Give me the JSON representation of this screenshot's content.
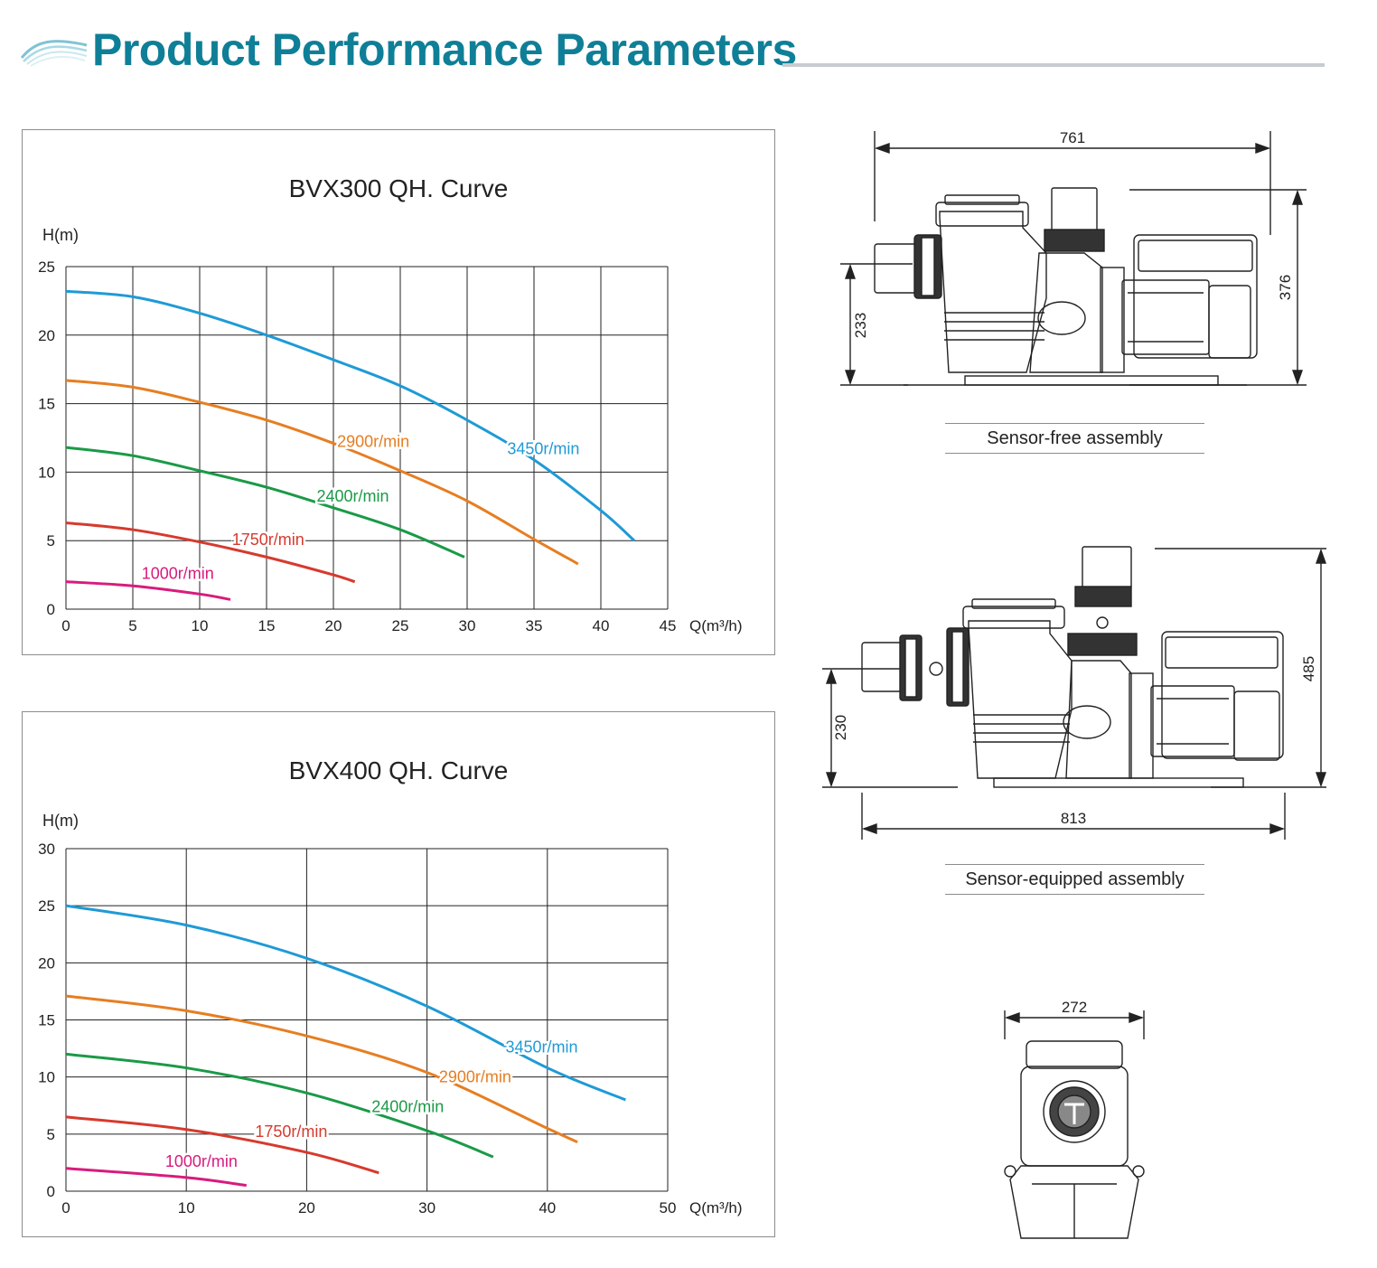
{
  "header": {
    "title": "Product Performance Parameters",
    "accent_color": "#0f7f97",
    "logo_icon": "wave-icon"
  },
  "chart_data": [
    {
      "type": "line",
      "title": "BVX300 QH. Curve",
      "ylabel": "H(m)",
      "xlabel": "Q(m³/h)",
      "xlim": [
        0,
        45
      ],
      "ylim": [
        0,
        25
      ],
      "xticks": [
        0,
        5,
        10,
        15,
        20,
        25,
        30,
        35,
        40,
        45
      ],
      "yticks": [
        0,
        5,
        10,
        15,
        20,
        25
      ],
      "grid": true,
      "series": [
        {
          "name": "3450r/min",
          "color": "#1f9ad6",
          "x": [
            0,
            5,
            10,
            15,
            20,
            25,
            30,
            35,
            40,
            42.5
          ],
          "y": [
            23.2,
            22.8,
            21.6,
            20.0,
            18.2,
            16.3,
            13.8,
            10.9,
            7.2,
            5.0
          ]
        },
        {
          "name": "2900r/min",
          "color": "#e67e22",
          "x": [
            0,
            5,
            10,
            15,
            20,
            25,
            30,
            35,
            38.3
          ],
          "y": [
            16.7,
            16.2,
            15.1,
            13.8,
            12.1,
            10.1,
            7.9,
            5.1,
            3.3
          ]
        },
        {
          "name": "2400r/min",
          "color": "#1a9a47",
          "x": [
            0,
            5,
            10,
            15,
            20,
            25,
            29.8
          ],
          "y": [
            11.8,
            11.2,
            10.1,
            8.9,
            7.4,
            5.8,
            3.8
          ]
        },
        {
          "name": "1750r/min",
          "color": "#d63a2e",
          "x": [
            0,
            5,
            10,
            15,
            20,
            21.6
          ],
          "y": [
            6.3,
            5.8,
            4.9,
            3.8,
            2.5,
            2.0
          ]
        },
        {
          "name": "1000r/min",
          "color": "#d81b7d",
          "x": [
            0,
            5,
            10,
            12.3
          ],
          "y": [
            2.0,
            1.7,
            1.1,
            0.7
          ]
        }
      ]
    },
    {
      "type": "line",
      "title": "BVX400 QH. Curve",
      "ylabel": "H(m)",
      "xlabel": "Q(m³/h)",
      "xlim": [
        0,
        50
      ],
      "ylim": [
        0,
        30
      ],
      "xticks": [
        0,
        10,
        20,
        30,
        40,
        50
      ],
      "yticks": [
        0,
        5,
        10,
        15,
        20,
        25,
        30
      ],
      "grid": true,
      "series": [
        {
          "name": "3450r/min",
          "color": "#1f9ad6",
          "x": [
            0,
            10,
            20,
            30,
            40,
            46.5
          ],
          "y": [
            25.0,
            23.3,
            20.4,
            16.2,
            10.8,
            8.0
          ]
        },
        {
          "name": "2900r/min",
          "color": "#e67e22",
          "x": [
            0,
            10,
            20,
            30,
            40,
            42.5
          ],
          "y": [
            17.1,
            15.8,
            13.6,
            10.4,
            5.5,
            4.3
          ]
        },
        {
          "name": "2400r/min",
          "color": "#1a9a47",
          "x": [
            0,
            10,
            20,
            30,
            35.5
          ],
          "y": [
            12.0,
            10.8,
            8.6,
            5.3,
            3.0
          ]
        },
        {
          "name": "1750r/min",
          "color": "#d63a2e",
          "x": [
            0,
            10,
            20,
            26
          ],
          "y": [
            6.5,
            5.4,
            3.4,
            1.6
          ]
        },
        {
          "name": "1000r/min",
          "color": "#d81b7d",
          "x": [
            0,
            10,
            15
          ],
          "y": [
            2.0,
            1.2,
            0.5
          ]
        }
      ]
    }
  ],
  "drawings": {
    "sensor_free": {
      "caption": "Sensor-free assembly",
      "dim_length": "761",
      "dim_height": "376",
      "dim_inlet_height": "233"
    },
    "sensor_equipped": {
      "caption": "Sensor-equipped assembly",
      "dim_length": "813",
      "dim_height": "485",
      "dim_inlet_height": "230"
    },
    "front_view": {
      "dim_width": "272"
    }
  }
}
